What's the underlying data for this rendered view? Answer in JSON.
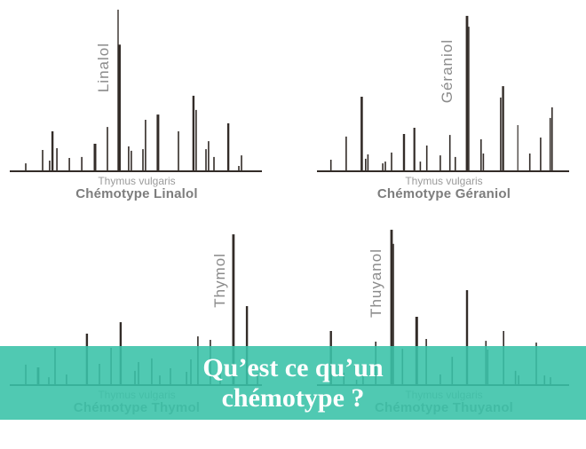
{
  "colors": {
    "ink": "#332c28",
    "banner_teal": "rgba(58,194,168,0.89)",
    "banner_text": "#ffffff",
    "annotation_gray": "#8b8b8b",
    "species_gray": "#9b9b9b",
    "chemotype_gray": "#7d7d7d"
  },
  "banner": {
    "line1": "Qu’est ce qu’un",
    "line2": "chémotype ?"
  },
  "chart_data": [
    {
      "type": "bar",
      "title": "Chémotype Linalol",
      "subtitle": "Thymus vulgaris",
      "peak_label": "Linalol",
      "note": "schematic chromatogram; peaks as [x% of axis, height% of plot, line-width px]",
      "peaks": [
        [
          7.2,
          4.3
        ],
        [
          13.7,
          12.5
        ],
        [
          16.4,
          6.0
        ],
        [
          17.5,
          23.9,
          2.4
        ],
        [
          19.2,
          13.6
        ],
        [
          24.0,
          7.6
        ],
        [
          28.8,
          8.2
        ],
        [
          33.9,
          16.3,
          3
        ],
        [
          38.7,
          26.6
        ],
        [
          42.8,
          98.4,
          1.4
        ],
        [
          43.4,
          77,
          2.6
        ],
        [
          46.9,
          14.7
        ],
        [
          47.9,
          12.0
        ],
        [
          52.4,
          13.0
        ],
        [
          53.4,
          31.0
        ],
        [
          58.2,
          34.2,
          3
        ],
        [
          66.1,
          23.9
        ],
        [
          71.9,
          45.7,
          2.4
        ],
        [
          72.9,
          37.0
        ],
        [
          76.7,
          13.0
        ],
        [
          77.7,
          17.9
        ],
        [
          79.8,
          8.2
        ],
        [
          85.3,
          28.8,
          2.4
        ],
        [
          89.4,
          2.7
        ],
        [
          90.4,
          9.2
        ]
      ]
    },
    {
      "type": "bar",
      "title": "Chémotype Géraniol",
      "subtitle": "Thymus vulgaris",
      "peak_label": "Géraniol",
      "note": "schematic chromatogram; peaks as [x% of axis, height% of plot, line-width px]",
      "peaks": [
        [
          6.4,
          6.5
        ],
        [
          12.3,
          20.7
        ],
        [
          18.3,
          45.1,
          2.6
        ],
        [
          19.8,
          7.1
        ],
        [
          20.7,
          9.8
        ],
        [
          26.4,
          4.3
        ],
        [
          27.4,
          5.4
        ],
        [
          29.8,
          10.9
        ],
        [
          34.6,
          22.3,
          2.4
        ],
        [
          38.6,
          26.1,
          2.2
        ],
        [
          40.9,
          5.4
        ],
        [
          43.4,
          15.2
        ],
        [
          48.6,
          9.2
        ],
        [
          52.3,
          21.7
        ],
        [
          54.4,
          8.2
        ],
        [
          58.9,
          94.6,
          2.8
        ],
        [
          59.6,
          88,
          1.4
        ],
        [
          64.3,
          19.0
        ],
        [
          65.2,
          10.3
        ],
        [
          71.9,
          44.6
        ],
        [
          72.8,
          51.6,
          2.4
        ],
        [
          78.5,
          27.7,
          1.2
        ],
        [
          83.1,
          10.3
        ],
        [
          87.3,
          20.1
        ],
        [
          91.0,
          32.1
        ],
        [
          91.7,
          38.6
        ]
      ]
    },
    {
      "type": "bar",
      "title": "Chémotype Thymol",
      "subtitle": "Thymus vulgaris",
      "peak_label": "Thymol",
      "note": "schematic chromatogram; peaks as [x% of axis, height% of plot, line-width px]",
      "peaks": [
        [
          7.2,
          12.0
        ],
        [
          12.0,
          10.3,
          2.8
        ],
        [
          16.1,
          4.3
        ],
        [
          18.5,
          22.3
        ],
        [
          22.9,
          6.0
        ],
        [
          30.8,
          31.0,
          2.4
        ],
        [
          35.6,
          12.5
        ],
        [
          40.1,
          22.3
        ],
        [
          43.8,
          38.0,
          2.4
        ],
        [
          49.3,
          8.2
        ],
        [
          50.7,
          13.6
        ],
        [
          55.8,
          15.8
        ],
        [
          58.9,
          5.4
        ],
        [
          63.0,
          9.8
        ],
        [
          69.2,
          7.6
        ],
        [
          70.9,
          15.2
        ],
        [
          73.6,
          29.3
        ],
        [
          78.4,
          27.2
        ],
        [
          82.2,
          6.5
        ],
        [
          87.3,
          91.8,
          2.8
        ],
        [
          92.5,
          47.8,
          2.4
        ],
        [
          96.6,
          6.5
        ]
      ]
    },
    {
      "type": "bar",
      "title": "Chémotype Thuyanol",
      "subtitle": "Thymus vulgaris",
      "peak_label": "Thuyanol",
      "note": "schematic chromatogram; peaks as [x% of axis, height% of plot, line-width px]",
      "peaks": [
        [
          6.4,
          32.6,
          2.4
        ],
        [
          11.4,
          7.1
        ],
        [
          16.3,
          2.7
        ],
        [
          18.8,
          5.4
        ],
        [
          23.7,
          26.1
        ],
        [
          29.8,
          94.6,
          2.8
        ],
        [
          30.5,
          86,
          1.4
        ],
        [
          34.0,
          21.7
        ],
        [
          39.5,
          41.3,
          3
        ],
        [
          43.2,
          27.7
        ],
        [
          48.6,
          6.0
        ],
        [
          53.2,
          16.8
        ],
        [
          58.9,
          57.6,
          2.4
        ],
        [
          66.2,
          26.6
        ],
        [
          66.9,
          21.2
        ],
        [
          73.0,
          32.6
        ],
        [
          77.6,
          8.2
        ],
        [
          78.8,
          5.4
        ],
        [
          85.6,
          25.5
        ],
        [
          88.8,
          5.4
        ],
        [
          91.1,
          4.3
        ]
      ]
    }
  ]
}
